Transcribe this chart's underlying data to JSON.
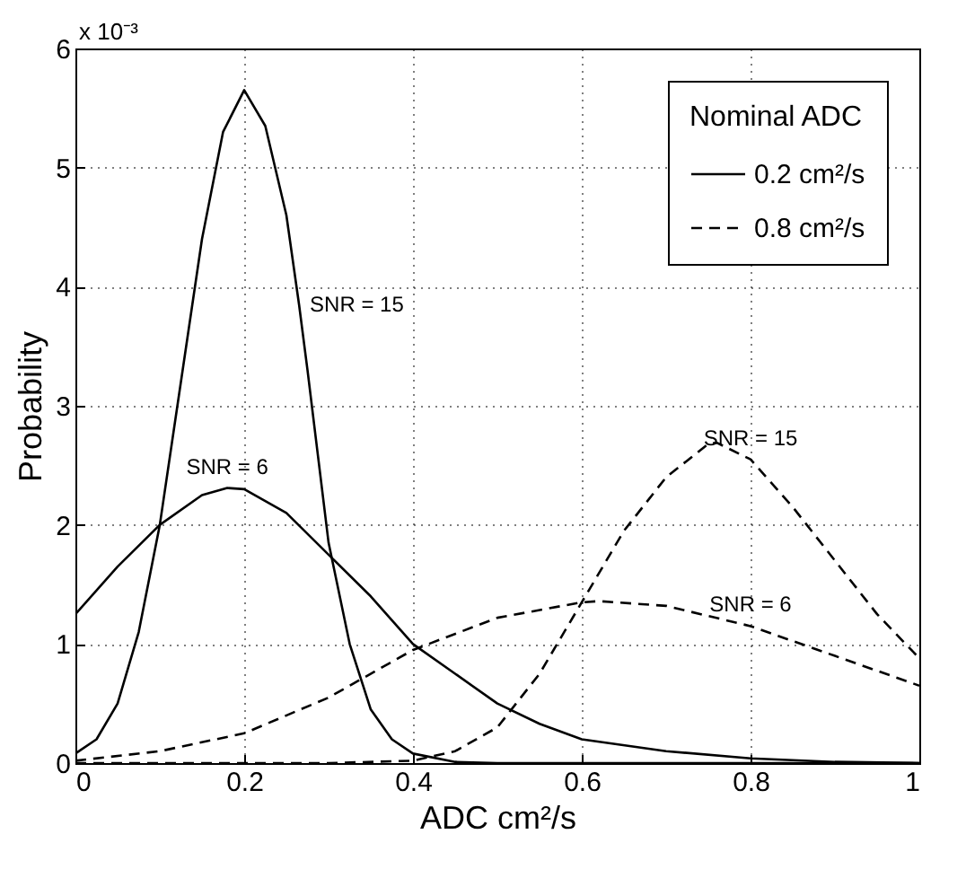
{
  "chart_data": {
    "type": "line",
    "xlabel": "ADC cm²/s",
    "ylabel": "Probability",
    "legend_title": "Nominal ADC",
    "xlim": [
      0,
      1
    ],
    "xticks": [
      0,
      0.2,
      0.4,
      0.6,
      0.8,
      1
    ],
    "ylim": [
      0,
      6
    ],
    "yticks": [
      0,
      1,
      2,
      3,
      4,
      5,
      6
    ],
    "grid": true,
    "legend": "top right",
    "annotations": [
      "x 10⁻³",
      {
        "text": "SNR = 15",
        "x": 0.265,
        "y": 3.85
      },
      {
        "text": "SNR = 6",
        "x": 0.18,
        "y": 2.31
      },
      {
        "text": "SNR = 15",
        "x": 0.8,
        "y": 2.55
      },
      {
        "text": "SNR = 6",
        "x": 0.8,
        "y": 1.15
      }
    ],
    "series": [
      {
        "name": "0.2 cm²/s",
        "color": "#000000",
        "line_style": "solid",
        "x": [
          0,
          0.025,
          0.05,
          0.075,
          0.1,
          0.125,
          0.15,
          0.175,
          0.2,
          0.225,
          0.25,
          0.265,
          0.275,
          0.3,
          0.325,
          0.35,
          0.375,
          0.4,
          0.45,
          0.5,
          1
        ],
        "values": [
          0.08,
          0.2,
          0.5,
          1.1,
          2.0,
          3.2,
          4.4,
          5.3,
          5.65,
          5.35,
          4.6,
          3.85,
          3.3,
          1.85,
          1.0,
          0.45,
          0.2,
          0.08,
          0.01,
          0,
          0
        ]
      },
      {
        "color": "#000000",
        "line_style": "solid",
        "x": [
          0,
          0.05,
          0.1,
          0.15,
          0.18,
          0.2,
          0.25,
          0.3,
          0.35,
          0.4,
          0.45,
          0.5,
          0.55,
          0.6,
          0.7,
          0.8,
          0.9,
          1
        ],
        "values": [
          1.25,
          1.65,
          2.0,
          2.25,
          2.31,
          2.3,
          2.1,
          1.75,
          1.4,
          1.0,
          0.75,
          0.5,
          0.33,
          0.2,
          0.1,
          0.04,
          0.01,
          0
        ]
      },
      {
        "name": "0.8 cm²/s",
        "color": "#000000",
        "line_style": "dashed",
        "x": [
          0,
          0.3,
          0.4,
          0.45,
          0.5,
          0.55,
          0.6,
          0.65,
          0.7,
          0.75,
          0.76,
          0.8,
          0.85,
          0.9,
          0.95,
          1
        ],
        "values": [
          0,
          0,
          0.02,
          0.1,
          0.3,
          0.75,
          1.35,
          1.95,
          2.4,
          2.68,
          2.69,
          2.55,
          2.15,
          1.7,
          1.25,
          0.88
        ]
      },
      {
        "color": "#000000",
        "line_style": "dashed",
        "x": [
          0,
          0.1,
          0.2,
          0.3,
          0.4,
          0.5,
          0.6,
          0.62,
          0.7,
          0.8,
          0.9,
          1
        ],
        "values": [
          0.02,
          0.1,
          0.25,
          0.55,
          0.95,
          1.22,
          1.35,
          1.36,
          1.32,
          1.15,
          0.9,
          0.65
        ]
      }
    ]
  }
}
